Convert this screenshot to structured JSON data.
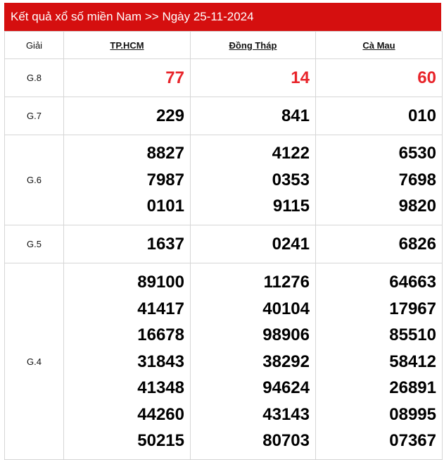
{
  "title": "Kết quả xổ số miền Nam >> Ngày 25-11-2024",
  "columns": {
    "prize": "Giải",
    "p1": "TP.HCM",
    "p2": "Đồng Tháp",
    "p3": "Cà Mau"
  },
  "colors": {
    "header_bg": "#d50f0f",
    "g8": "#e8242a"
  },
  "rows": {
    "g8": {
      "label": "G.8",
      "p1": [
        "77"
      ],
      "p2": [
        "14"
      ],
      "p3": [
        "60"
      ]
    },
    "g7": {
      "label": "G.7",
      "p1": [
        "229"
      ],
      "p2": [
        "841"
      ],
      "p3": [
        "010"
      ]
    },
    "g6": {
      "label": "G.6",
      "p1": [
        "8827",
        "7987",
        "0101"
      ],
      "p2": [
        "4122",
        "0353",
        "9115"
      ],
      "p3": [
        "6530",
        "7698",
        "9820"
      ]
    },
    "g5": {
      "label": "G.5",
      "p1": [
        "1637"
      ],
      "p2": [
        "0241"
      ],
      "p3": [
        "6826"
      ]
    },
    "g4": {
      "label": "G.4",
      "p1": [
        "89100",
        "41417",
        "16678",
        "31843",
        "41348",
        "44260",
        "50215"
      ],
      "p2": [
        "11276",
        "40104",
        "98906",
        "38292",
        "94624",
        "43143",
        "80703"
      ],
      "p3": [
        "64663",
        "17967",
        "85510",
        "58412",
        "26891",
        "08995",
        "07367"
      ]
    }
  }
}
